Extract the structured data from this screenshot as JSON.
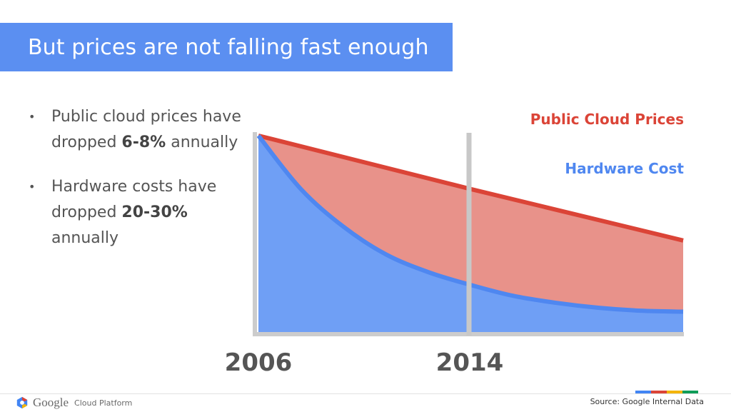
{
  "title": "But prices are not falling fast enough",
  "bullets": [
    {
      "text_before": "Public cloud prices have dropped ",
      "bold": "6-8%",
      "text_after": " annually"
    },
    {
      "text_before": "Hardware costs have dropped ",
      "bold": "20-30%",
      "text_after": " annually"
    }
  ],
  "chart_data": {
    "type": "area",
    "title": "",
    "xlabel": "",
    "ylabel": "",
    "x_ticks": [
      "2006",
      "2014"
    ],
    "grid": false,
    "legend_placement": "top-right",
    "series": [
      {
        "name": "Public Cloud Prices",
        "color": "#db4437",
        "fill": "#e8928a",
        "x": [
          0,
          0.5,
          1
        ],
        "y": [
          1.0,
          0.73,
          0.47
        ]
      },
      {
        "name": "Hardware Cost",
        "color": "#4f87f0",
        "fill": "#6f9ff5",
        "x": [
          0,
          0.1,
          0.2,
          0.3,
          0.4,
          0.5,
          0.6,
          0.7,
          0.8,
          0.9,
          1
        ],
        "y": [
          1.0,
          0.73,
          0.54,
          0.4,
          0.31,
          0.245,
          0.19,
          0.155,
          0.13,
          0.115,
          0.11
        ]
      }
    ]
  },
  "footer": {
    "logo_google": "Google",
    "logo_product": "Cloud Platform",
    "source": "Source: Google Internal Data",
    "strip_colors": [
      "#4285f4",
      "#db4437",
      "#f4b400",
      "#0f9d58"
    ]
  }
}
